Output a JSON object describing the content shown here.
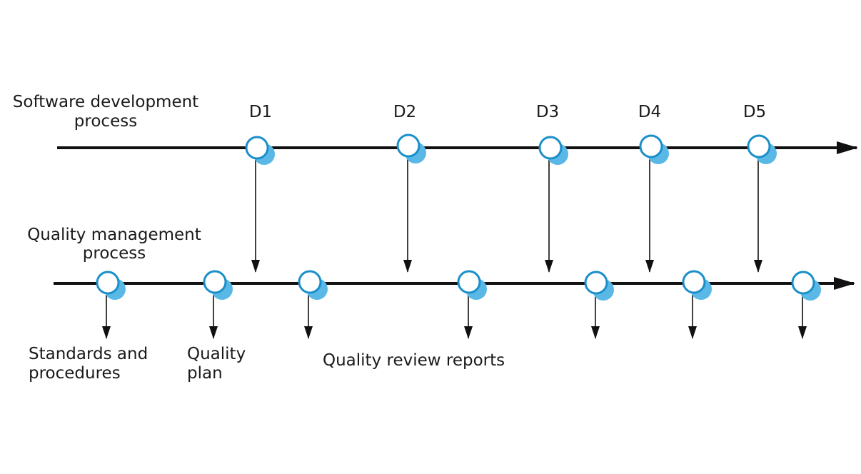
{
  "labels": {
    "software_line1": "Software development",
    "software_line2": "process",
    "quality_line1": "Quality management",
    "quality_line2": "process",
    "standards_line1": "Standards and",
    "standards_line2": "procedures",
    "plan_line1": "Quality",
    "plan_line2": "plan",
    "reports": "Quality review reports"
  },
  "deliverables": [
    "D1",
    "D2",
    "D3",
    "D4",
    "D5"
  ],
  "colors": {
    "line": "#111111",
    "node_stroke": "#1a8fc9",
    "node_fill": "#ffffff",
    "node_shadow": "#5ab8e6"
  }
}
